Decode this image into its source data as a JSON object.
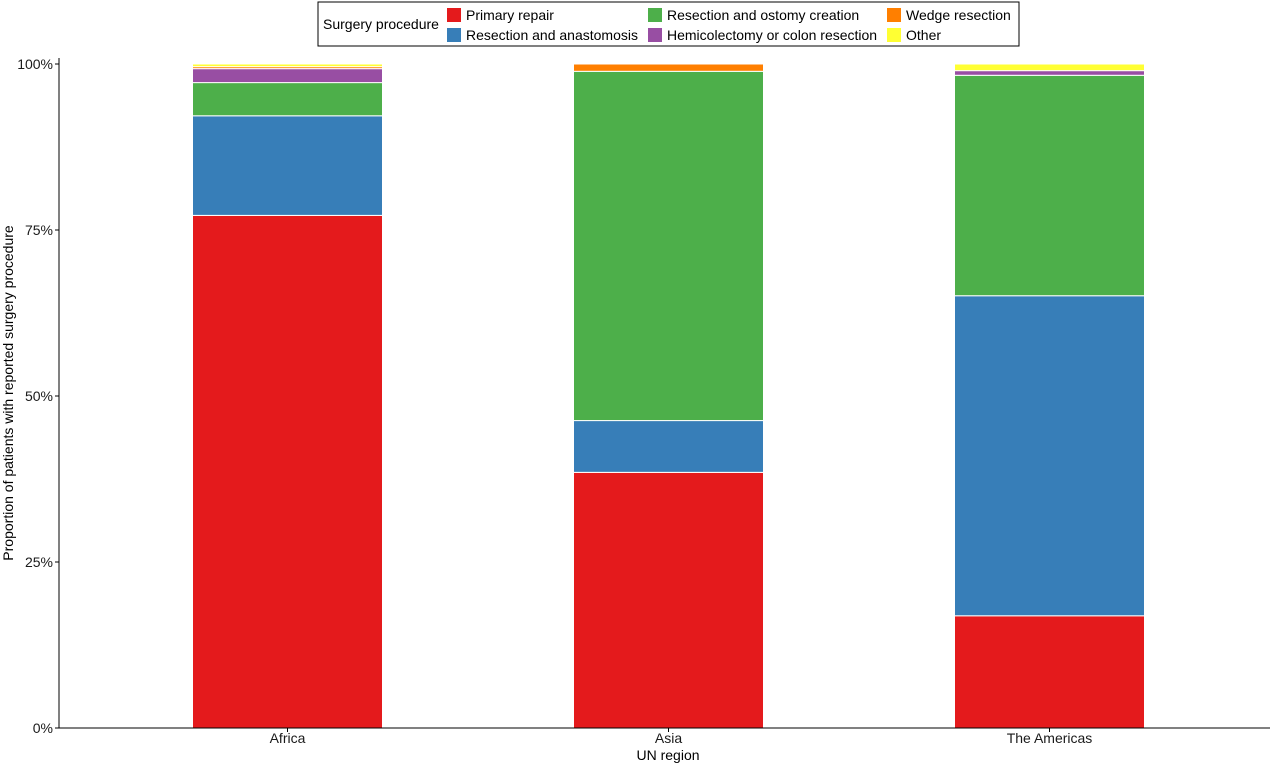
{
  "chart_data": {
    "type": "bar",
    "stacked": true,
    "categories": [
      "Africa",
      "Asia",
      "The Americas"
    ],
    "series": [
      {
        "name": "Primary repair",
        "color": "#E41A1C",
        "values": [
          77.2,
          38.5,
          16.9
        ]
      },
      {
        "name": "Resection and anastomosis",
        "color": "#377EB8",
        "values": [
          15.0,
          7.8,
          48.2
        ]
      },
      {
        "name": "Resection and ostomy creation",
        "color": "#4DAF4A",
        "values": [
          5.0,
          52.6,
          33.2
        ]
      },
      {
        "name": "Hemicolectomy or colon resection",
        "color": "#984EA3",
        "values": [
          2.1,
          0.0,
          0.7
        ]
      },
      {
        "name": "Wedge resection",
        "color": "#FF7F00",
        "values": [
          0.3,
          1.1,
          0.0
        ]
      },
      {
        "name": "Other",
        "color": "#FFFF33",
        "values": [
          0.4,
          0.0,
          1.0
        ]
      }
    ],
    "title": "",
    "xlabel": "UN region",
    "ylabel": "Proportion of patients with reported surgery procedure",
    "ylim": [
      0,
      100
    ],
    "yticks": [
      {
        "value": 0,
        "label": "0%"
      },
      {
        "value": 25,
        "label": "25%"
      },
      {
        "value": 50,
        "label": "50%"
      },
      {
        "value": 75,
        "label": "75%"
      },
      {
        "value": 100,
        "label": "100%"
      }
    ],
    "grid": false,
    "legend": {
      "title": "Surgery procedure",
      "position": "top",
      "columns": 3
    }
  }
}
